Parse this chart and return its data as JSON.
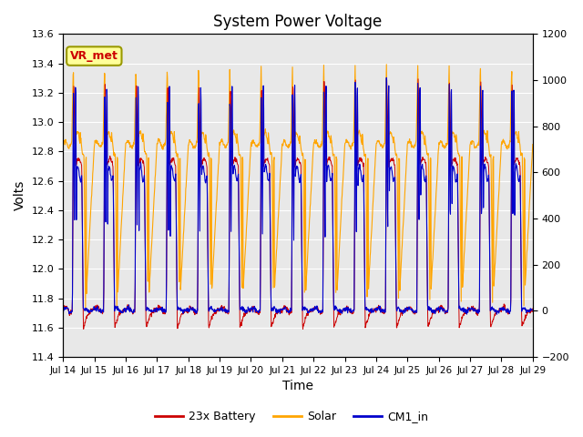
{
  "title": "System Power Voltage",
  "xlabel": "Time",
  "ylabel_left": "Volts",
  "ylim_left": [
    11.4,
    13.6
  ],
  "ylim_right": [
    -200,
    1200
  ],
  "yticks_left": [
    11.4,
    11.6,
    11.8,
    12.0,
    12.2,
    12.4,
    12.6,
    12.8,
    13.0,
    13.2,
    13.4,
    13.6
  ],
  "yticks_right": [
    -200,
    0,
    200,
    400,
    600,
    800,
    1000,
    1200
  ],
  "xtick_labels": [
    "Jul 14",
    "Jul 15",
    "Jul 16",
    "Jul 17",
    "Jul 18",
    "Jul 19",
    "Jul 20",
    "Jul 21",
    "Jul 22",
    "Jul 23",
    "Jul 24",
    "Jul 25",
    "Jul 26",
    "Jul 27",
    "Jul 28",
    "Jul 29"
  ],
  "bg_color": "#e8e8e8",
  "battery_color": "#cc0000",
  "solar_color": "#ffa500",
  "cm1_color": "#0000cc",
  "annotation_text": "VR_met",
  "annotation_bg": "#ffff99",
  "annotation_border": "#999900",
  "legend_labels": [
    "23x Battery",
    "Solar",
    "CM1_in"
  ]
}
